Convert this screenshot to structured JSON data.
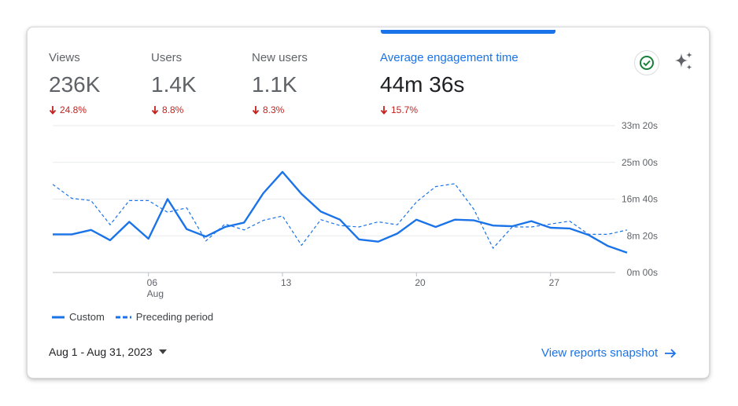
{
  "metrics": [
    {
      "label": "Views",
      "value": "236K",
      "delta": "24.8%"
    },
    {
      "label": "Users",
      "value": "1.4K",
      "delta": "8.8%"
    },
    {
      "label": "New users",
      "value": "1.1K",
      "delta": "8.3%"
    },
    {
      "label": "Average engagement time",
      "value": "44m 36s",
      "delta": "15.7%",
      "active": true
    }
  ],
  "colors": {
    "accent": "#1a73e8",
    "negative": "#c5221f",
    "check": "#188038"
  },
  "icons": {
    "check": "check-circle-icon",
    "sparkle": "sparkle-icon",
    "dropdown": "caret-down-icon",
    "arrow": "arrow-right-icon"
  },
  "chart_data": {
    "type": "line",
    "x_unit": "day of August 2023",
    "x_tick_labels": [
      {
        "day": 6,
        "label": "06",
        "sub": "Aug"
      },
      {
        "day": 13,
        "label": "13"
      },
      {
        "day": 20,
        "label": "20"
      },
      {
        "day": 27,
        "label": "27"
      }
    ],
    "y_ticks": [
      {
        "value": 0,
        "label": "0m 00s"
      },
      {
        "value": 500,
        "label": "8m 20s"
      },
      {
        "value": 1000,
        "label": "16m 40s"
      },
      {
        "value": 1500,
        "label": "25m 00s"
      },
      {
        "value": 2000,
        "label": "33m 20s"
      }
    ],
    "ylim": [
      0,
      2000
    ],
    "x": [
      1,
      2,
      3,
      4,
      5,
      6,
      7,
      8,
      9,
      10,
      11,
      12,
      13,
      14,
      15,
      16,
      17,
      18,
      19,
      20,
      21,
      22,
      23,
      24,
      25,
      26,
      27,
      28,
      29,
      30,
      31
    ],
    "series": [
      {
        "name": "Custom",
        "style": "solid",
        "values": [
          520,
          520,
          580,
          440,
          690,
          460,
          1000,
          590,
          490,
          620,
          680,
          1080,
          1370,
          1070,
          830,
          720,
          450,
          420,
          530,
          720,
          620,
          720,
          710,
          640,
          630,
          700,
          610,
          600,
          510,
          360,
          270
        ]
      },
      {
        "name": "Preceding period",
        "style": "dashed",
        "values": [
          1200,
          1010,
          980,
          650,
          980,
          980,
          820,
          880,
          430,
          660,
          580,
          710,
          770,
          370,
          720,
          640,
          620,
          690,
          650,
          960,
          1170,
          1210,
          860,
          330,
          620,
          620,
          660,
          700,
          520,
          520,
          580
        ]
      }
    ],
    "legend_position": "bottom-left",
    "grid": true
  },
  "footer": {
    "date_range": "Aug 1 - Aug 31, 2023",
    "link_label": "View reports snapshot"
  }
}
